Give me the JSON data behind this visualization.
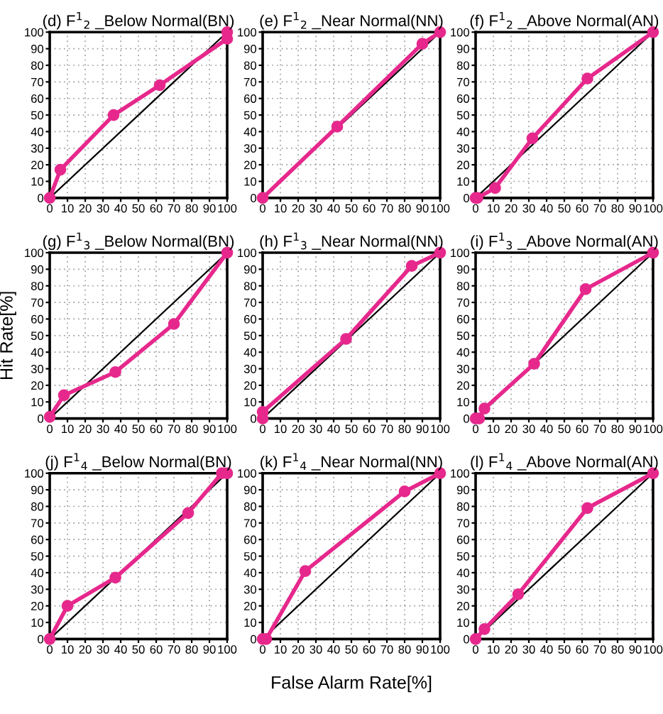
{
  "chart_data": [
    {
      "type": "line",
      "title": "(d) F$^{1}$$_{2}$ _Below Normal(BN)",
      "xlim": [
        0,
        100
      ],
      "ylim": [
        0,
        100
      ],
      "xticks": [
        0,
        10,
        20,
        30,
        40,
        50,
        60,
        70,
        80,
        90,
        100
      ],
      "yticks": [
        0,
        10,
        20,
        30,
        40,
        50,
        60,
        70,
        80,
        90,
        100
      ],
      "grid": true,
      "series": [
        {
          "color": "#000000",
          "marker": "none",
          "x": [
            0,
            100
          ],
          "values": [
            0,
            100
          ]
        },
        {
          "color": "#e6288c",
          "marker": "circle",
          "x": [
            0,
            6,
            36,
            62,
            100,
            100
          ],
          "values": [
            0,
            17,
            50,
            68,
            96,
            100
          ]
        }
      ]
    },
    {
      "type": "line",
      "title": "(e) F$^{1}$$_{2}$ _Near Normal(NN)",
      "xlim": [
        0,
        100
      ],
      "ylim": [
        0,
        100
      ],
      "xticks": [
        0,
        10,
        20,
        30,
        40,
        50,
        60,
        70,
        80,
        90,
        100
      ],
      "yticks": [
        0,
        10,
        20,
        30,
        40,
        50,
        60,
        70,
        80,
        90,
        100
      ],
      "grid": true,
      "series": [
        {
          "color": "#000000",
          "marker": "none",
          "x": [
            0,
            100
          ],
          "values": [
            0,
            100
          ]
        },
        {
          "color": "#e6288c",
          "marker": "circle",
          "x": [
            0,
            42,
            90,
            100
          ],
          "values": [
            0,
            43,
            93,
            100
          ]
        }
      ]
    },
    {
      "type": "line",
      "title": "(f) F$^{1}$$_{2}$ _Above Normal(AN)",
      "xlim": [
        0,
        100
      ],
      "ylim": [
        0,
        100
      ],
      "xticks": [
        0,
        10,
        20,
        30,
        40,
        50,
        60,
        70,
        80,
        90,
        100
      ],
      "yticks": [
        0,
        10,
        20,
        30,
        40,
        50,
        60,
        70,
        80,
        90,
        100
      ],
      "grid": true,
      "series": [
        {
          "color": "#000000",
          "marker": "none",
          "x": [
            0,
            100
          ],
          "values": [
            0,
            100
          ]
        },
        {
          "color": "#e6288c",
          "marker": "circle",
          "x": [
            0,
            1,
            11,
            32,
            63,
            100
          ],
          "values": [
            0,
            0,
            6,
            36,
            72,
            100
          ]
        }
      ]
    },
    {
      "type": "line",
      "title": "(g) F$^{1}$$_{3}$ _Below Normal(BN)",
      "ylabel": "Hit Rate[%]",
      "xlim": [
        0,
        100
      ],
      "ylim": [
        0,
        100
      ],
      "xticks": [
        0,
        10,
        20,
        30,
        40,
        50,
        60,
        70,
        80,
        90,
        100
      ],
      "yticks": [
        0,
        10,
        20,
        30,
        40,
        50,
        60,
        70,
        80,
        90,
        100
      ],
      "grid": true,
      "series": [
        {
          "color": "#000000",
          "marker": "none",
          "x": [
            0,
            100
          ],
          "values": [
            0,
            100
          ]
        },
        {
          "color": "#e6288c",
          "marker": "circle",
          "x": [
            0,
            8,
            37,
            70,
            100
          ],
          "values": [
            1,
            14,
            28,
            57,
            100
          ]
        }
      ]
    },
    {
      "type": "line",
      "title": "(h) F$^{1}$$_{3}$ _Near Normal(NN)",
      "xlim": [
        0,
        100
      ],
      "ylim": [
        0,
        100
      ],
      "xticks": [
        0,
        10,
        20,
        30,
        40,
        50,
        60,
        70,
        80,
        90,
        100
      ],
      "yticks": [
        0,
        10,
        20,
        30,
        40,
        50,
        60,
        70,
        80,
        90,
        100
      ],
      "grid": true,
      "series": [
        {
          "color": "#000000",
          "marker": "none",
          "x": [
            0,
            100
          ],
          "values": [
            0,
            100
          ]
        },
        {
          "color": "#e6288c",
          "marker": "circle",
          "x": [
            0,
            0,
            47,
            84,
            100
          ],
          "values": [
            0,
            4,
            48,
            92,
            100
          ]
        }
      ]
    },
    {
      "type": "line",
      "title": "(i) F$^{1}$$_{3}$ _Above Normal(AN)",
      "xlim": [
        0,
        100
      ],
      "ylim": [
        0,
        100
      ],
      "xticks": [
        0,
        10,
        20,
        30,
        40,
        50,
        60,
        70,
        80,
        90,
        100
      ],
      "yticks": [
        0,
        10,
        20,
        30,
        40,
        50,
        60,
        70,
        80,
        90,
        100
      ],
      "grid": true,
      "series": [
        {
          "color": "#000000",
          "marker": "none",
          "x": [
            0,
            100
          ],
          "values": [
            0,
            100
          ]
        },
        {
          "color": "#e6288c",
          "marker": "circle",
          "x": [
            0,
            2,
            5,
            33,
            62,
            100
          ],
          "values": [
            0,
            0,
            6,
            33,
            78,
            100
          ]
        }
      ]
    },
    {
      "type": "line",
      "title": "(j) F$^{1}$$_{4}$ _Below Normal(BN)",
      "xlim": [
        0,
        100
      ],
      "ylim": [
        0,
        100
      ],
      "xticks": [
        0,
        10,
        20,
        30,
        40,
        50,
        60,
        70,
        80,
        90,
        100
      ],
      "yticks": [
        0,
        10,
        20,
        30,
        40,
        50,
        60,
        70,
        80,
        90,
        100
      ],
      "grid": true,
      "series": [
        {
          "color": "#000000",
          "marker": "none",
          "x": [
            0,
            100
          ],
          "values": [
            0,
            100
          ]
        },
        {
          "color": "#e6288c",
          "marker": "circle",
          "x": [
            0,
            10,
            37,
            78,
            97,
            100
          ],
          "values": [
            0,
            20,
            37,
            76,
            100,
            100
          ]
        }
      ]
    },
    {
      "type": "line",
      "title": "(k) F$^{1}$$_{4}$ _Near Normal(NN)",
      "xlabel": "False Alarm Rate[%]",
      "xlim": [
        0,
        100
      ],
      "ylim": [
        0,
        100
      ],
      "xticks": [
        0,
        10,
        20,
        30,
        40,
        50,
        60,
        70,
        80,
        90,
        100
      ],
      "yticks": [
        0,
        10,
        20,
        30,
        40,
        50,
        60,
        70,
        80,
        90,
        100
      ],
      "grid": true,
      "series": [
        {
          "color": "#000000",
          "marker": "none",
          "x": [
            0,
            100
          ],
          "values": [
            0,
            100
          ]
        },
        {
          "color": "#e6288c",
          "marker": "circle",
          "x": [
            0,
            2,
            24,
            80,
            100
          ],
          "values": [
            0,
            0,
            41,
            89,
            100
          ]
        }
      ]
    },
    {
      "type": "line",
      "title": "(l) F$^{1}$$_{4}$ _Above Normal(AN)",
      "xlim": [
        0,
        100
      ],
      "ylim": [
        0,
        100
      ],
      "xticks": [
        0,
        10,
        20,
        30,
        40,
        50,
        60,
        70,
        80,
        90,
        100
      ],
      "yticks": [
        0,
        10,
        20,
        30,
        40,
        50,
        60,
        70,
        80,
        90,
        100
      ],
      "grid": true,
      "series": [
        {
          "color": "#000000",
          "marker": "none",
          "x": [
            0,
            100
          ],
          "values": [
            0,
            100
          ]
        },
        {
          "color": "#e6288c",
          "marker": "circle",
          "x": [
            0,
            5,
            24,
            63,
            100
          ],
          "values": [
            0,
            6,
            27,
            79,
            100
          ]
        }
      ]
    }
  ]
}
